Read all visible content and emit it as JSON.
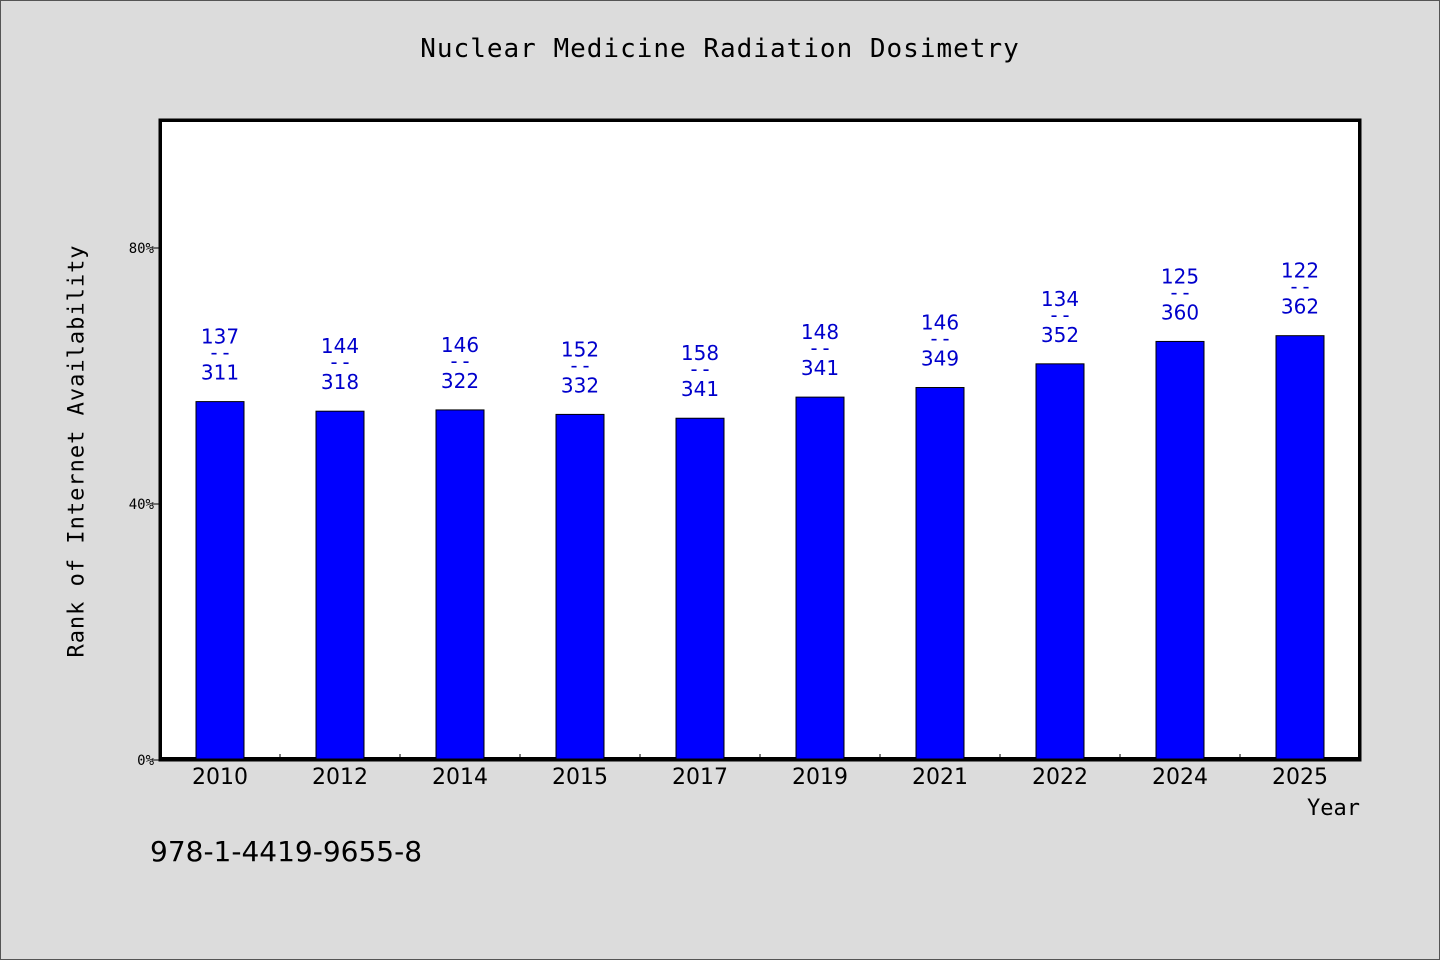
{
  "chart_data": {
    "type": "bar",
    "title": "Nuclear Medicine Radiation Dosimetry",
    "xlabel": "Year",
    "ylabel": "Rank of Internet Availability",
    "categories": [
      "2010",
      "2012",
      "2014",
      "2015",
      "2017",
      "2019",
      "2021",
      "2022",
      "2024",
      "2025"
    ],
    "values": [
      56.0,
      54.5,
      54.7,
      54.0,
      53.4,
      56.7,
      58.2,
      61.9,
      65.4,
      66.3
    ],
    "value_unit": "%",
    "data_labels": [
      {
        "top": "137",
        "sep": "--",
        "bottom": "311"
      },
      {
        "top": "144",
        "sep": "--",
        "bottom": "318"
      },
      {
        "top": "146",
        "sep": "--",
        "bottom": "322"
      },
      {
        "top": "152",
        "sep": "--",
        "bottom": "332"
      },
      {
        "top": "158",
        "sep": "--",
        "bottom": "341"
      },
      {
        "top": "148",
        "sep": "--",
        "bottom": "341"
      },
      {
        "top": "146",
        "sep": "--",
        "bottom": "349"
      },
      {
        "top": "134",
        "sep": "--",
        "bottom": "352"
      },
      {
        "top": "125",
        "sep": "--",
        "bottom": "360"
      },
      {
        "top": "122",
        "sep": "--",
        "bottom": "362"
      }
    ],
    "yticks": [
      {
        "value": 0,
        "label": "0%"
      },
      {
        "value": 40,
        "label": "40%"
      },
      {
        "value": 80,
        "label": "80%"
      }
    ],
    "ylim": [
      0,
      100
    ],
    "grid": false,
    "colors": {
      "bar": "#0000ff",
      "bar_edge": "#000000",
      "data_label": "#0000cc",
      "background": "#dcdcdc",
      "plot_background": "#ffffff"
    }
  },
  "footer": {
    "isbn": "978-1-4419-9655-8"
  }
}
